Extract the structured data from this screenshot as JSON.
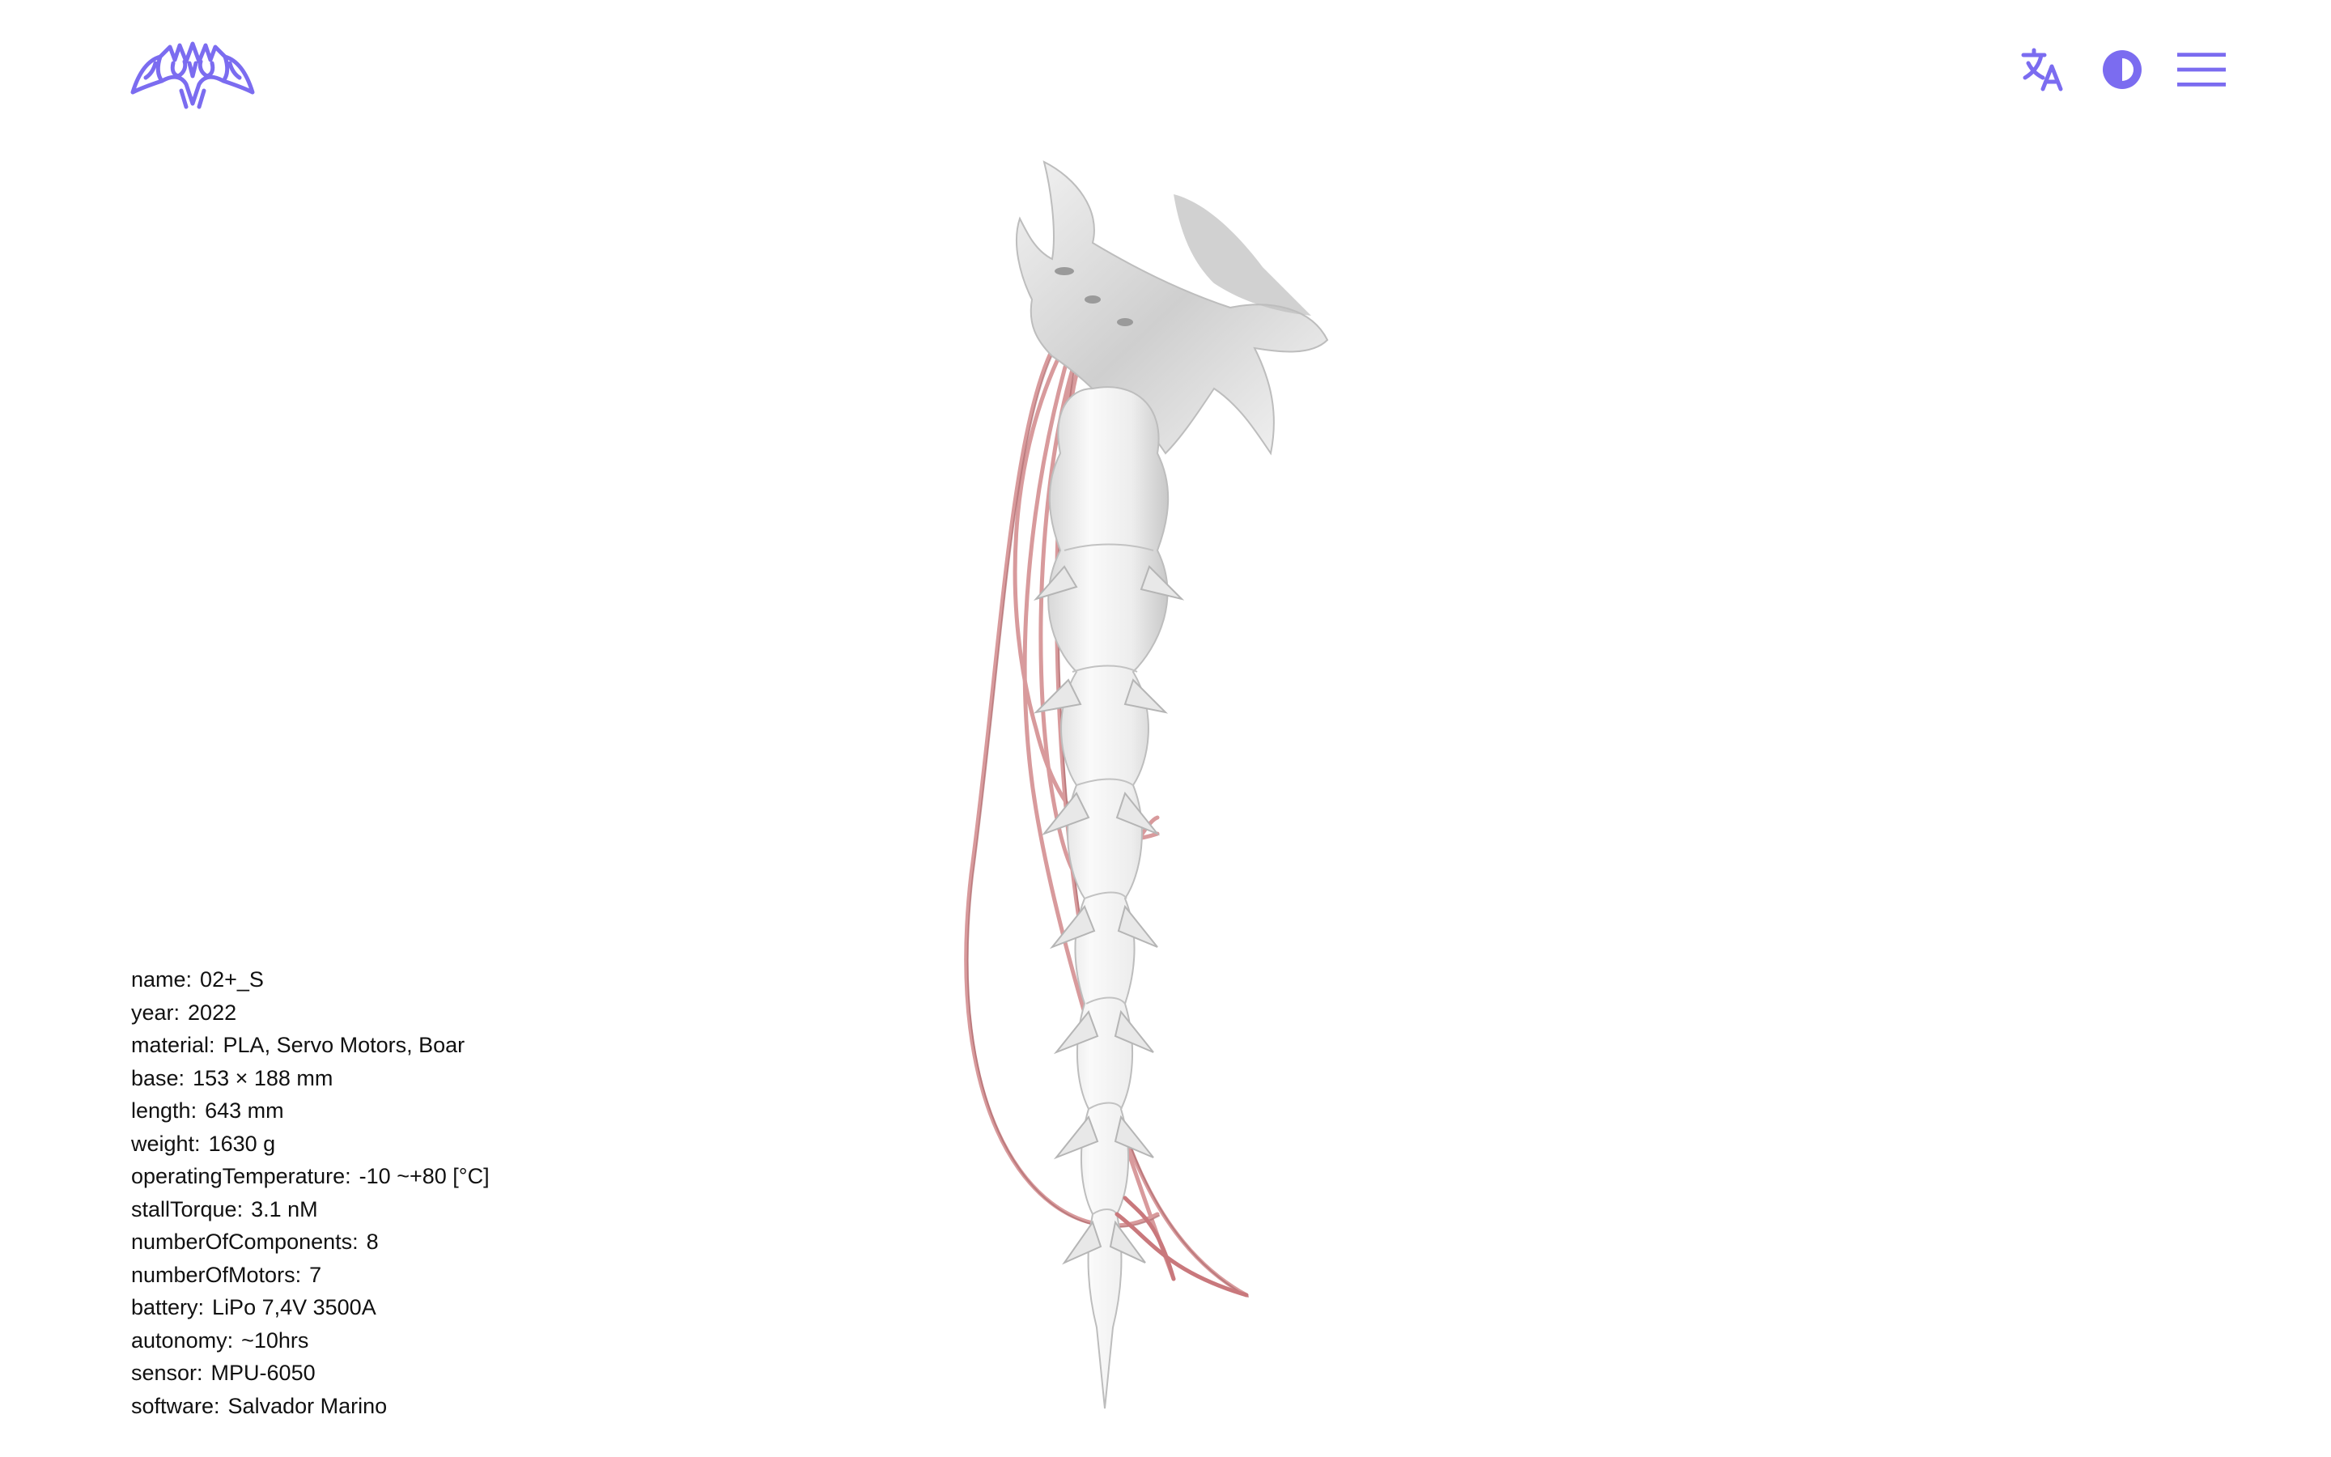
{
  "colors": {
    "accent": "#7b6cf0",
    "text": "#111111",
    "background": "#ffffff",
    "cable": "#d89a9c",
    "sculpture": "#e6e6e6"
  },
  "header": {
    "logo_icon": "gothic-logo-icon",
    "actions": [
      {
        "icon": "translate-icon"
      },
      {
        "icon": "contrast-icon"
      },
      {
        "icon": "menu-icon"
      }
    ]
  },
  "artwork": {
    "icon": "spine-sculpture-render"
  },
  "specs": [
    {
      "key": "name:",
      "value": "02+_S"
    },
    {
      "key": "year:",
      "value": "2022"
    },
    {
      "key": "material:",
      "value": "PLA, Servo Motors, Boar"
    },
    {
      "key": "base:",
      "value": "153 × 188 mm"
    },
    {
      "key": "length:",
      "value": "643 mm"
    },
    {
      "key": "weight:",
      "value": "1630 g"
    },
    {
      "key": "operatingTemperature:",
      "value": "-10 ~+80 [°C]"
    },
    {
      "key": "stallTorque:",
      "value": "3.1 nM"
    },
    {
      "key": "numberOfComponents:",
      "value": "8"
    },
    {
      "key": "numberOfMotors:",
      "value": "7"
    },
    {
      "key": "battery:",
      "value": "LiPo 7,4V 3500A"
    },
    {
      "key": "autonomy:",
      "value": "~10hrs"
    },
    {
      "key": "sensor:",
      "value": "MPU-6050"
    },
    {
      "key": "software:",
      "value": "Salvador Marino"
    }
  ]
}
